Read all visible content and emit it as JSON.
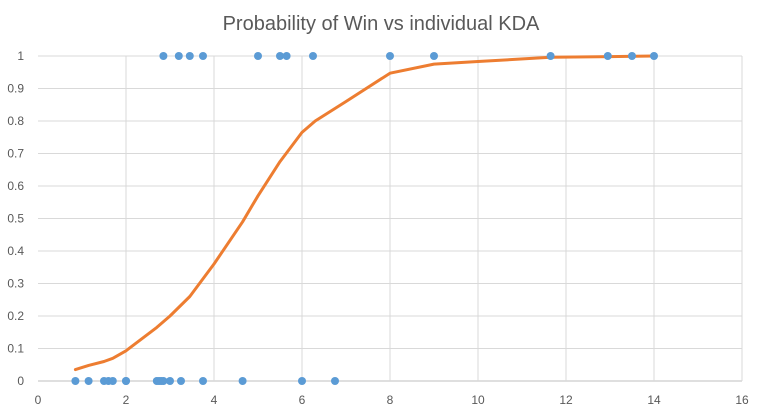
{
  "chart_data": {
    "type": "scatter",
    "title": "Probability of Win vs individual KDA",
    "xlabel": "",
    "ylabel": "",
    "xlim": [
      0,
      16
    ],
    "ylim": [
      0,
      1
    ],
    "x_ticks": [
      0,
      2,
      4,
      6,
      8,
      10,
      12,
      14,
      16
    ],
    "y_ticks": [
      0,
      0.1,
      0.2,
      0.3,
      0.4,
      0.5,
      0.6,
      0.7,
      0.8,
      0.9,
      1
    ],
    "grid": true,
    "legend": "none",
    "colors": {
      "points": "#5b9bd5",
      "curve": "#ed7d31",
      "grid": "#d9d9d9",
      "text": "#595959"
    },
    "series": [
      {
        "type": "scatter",
        "x": [
          0.85,
          1.15,
          1.5,
          1.6,
          1.7,
          2.0,
          2.0,
          2.7,
          2.75,
          2.8,
          2.85,
          3.0,
          3.25,
          3.75,
          4.65,
          6.0,
          6.75,
          2.85,
          3.2,
          3.45,
          3.75,
          5.0,
          5.5,
          5.65,
          6.25,
          8.0,
          9.0,
          11.65,
          12.95,
          13.5,
          14.0
        ],
        "y": [
          0,
          0,
          0,
          0,
          0,
          0,
          0,
          0,
          0,
          0,
          0,
          0,
          0,
          0,
          0,
          0,
          0,
          1,
          1,
          1,
          1,
          1,
          1,
          1,
          1,
          1,
          1,
          1,
          1,
          1,
          1
        ]
      },
      {
        "type": "line",
        "x": [
          0.85,
          1.15,
          1.5,
          1.7,
          2.0,
          2.7,
          3.0,
          3.45,
          4.0,
          4.65,
          5.0,
          5.5,
          6.0,
          6.3,
          7.0,
          8.0,
          9.0,
          10.0,
          11.65,
          13.0,
          14.0
        ],
        "y": [
          0.035,
          0.048,
          0.06,
          0.07,
          0.093,
          0.165,
          0.2,
          0.26,
          0.36,
          0.49,
          0.57,
          0.675,
          0.765,
          0.8,
          0.86,
          0.947,
          0.975,
          0.983,
          0.996,
          0.998,
          1.0
        ]
      }
    ]
  }
}
